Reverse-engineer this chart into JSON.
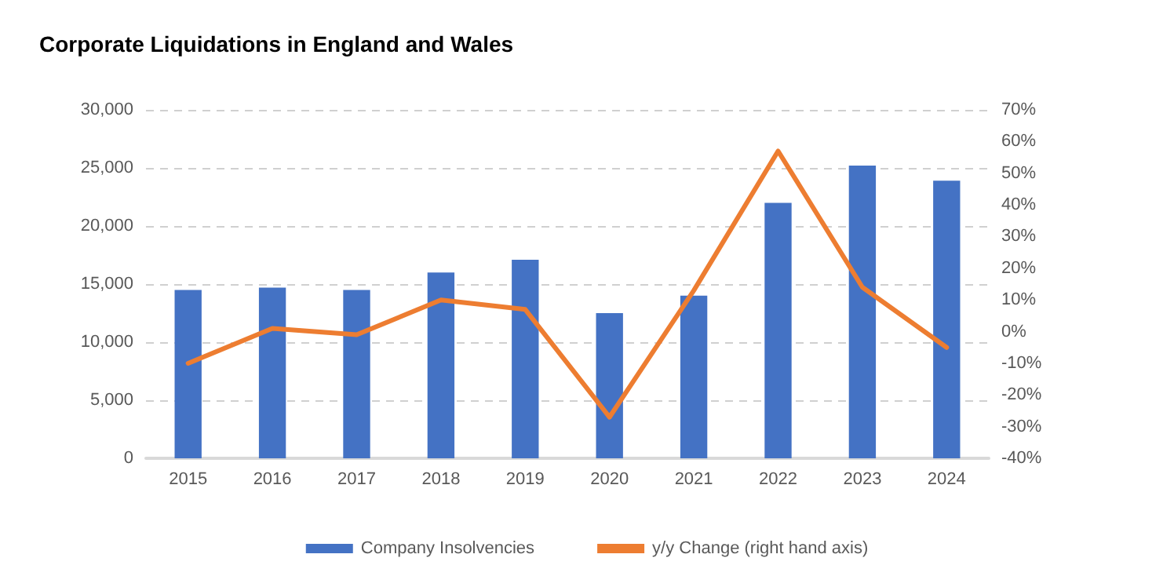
{
  "chart_data": {
    "type": "bar",
    "title": "Corporate Liquidations in England and Wales",
    "categories": [
      "2015",
      "2016",
      "2017",
      "2018",
      "2019",
      "2020",
      "2021",
      "2022",
      "2023",
      "2024"
    ],
    "series": [
      {
        "name": "Company Insolvencies",
        "color": "#4472c4",
        "values": [
          14500,
          14700,
          14500,
          16000,
          17100,
          12500,
          14000,
          22000,
          25200,
          23900
        ]
      },
      {
        "name": "y/y Change (right hand axis)",
        "type": "line",
        "axis": "y2",
        "color": "#ed7d31",
        "values": [
          -10,
          1,
          -1,
          10,
          7,
          -27,
          13,
          57,
          14,
          -5
        ]
      }
    ],
    "ylim": [
      0,
      30000
    ],
    "yticks": [
      {
        "value": 0,
        "label": "0"
      },
      {
        "value": 5000,
        "label": "5,000"
      },
      {
        "value": 10000,
        "label": "10,000"
      },
      {
        "value": 15000,
        "label": "15,000"
      },
      {
        "value": 20000,
        "label": "20,000"
      },
      {
        "value": 25000,
        "label": "25,000"
      },
      {
        "value": 30000,
        "label": "30,000"
      }
    ],
    "y2lim": [
      -40,
      70
    ],
    "y2ticks": [
      {
        "value": -40,
        "label": "-40%"
      },
      {
        "value": -30,
        "label": "-30%"
      },
      {
        "value": -20,
        "label": "-20%"
      },
      {
        "value": -10,
        "label": "-10%"
      },
      {
        "value": 0,
        "label": "0%"
      },
      {
        "value": 10,
        "label": "10%"
      },
      {
        "value": 20,
        "label": "20%"
      },
      {
        "value": 30,
        "label": "30%"
      },
      {
        "value": 40,
        "label": "40%"
      },
      {
        "value": 50,
        "label": "50%"
      },
      {
        "value": 60,
        "label": "60%"
      },
      {
        "value": 70,
        "label": "70%"
      }
    ],
    "grid": "y",
    "legend": "bottom",
    "marker": "none",
    "line_style": "solid"
  }
}
